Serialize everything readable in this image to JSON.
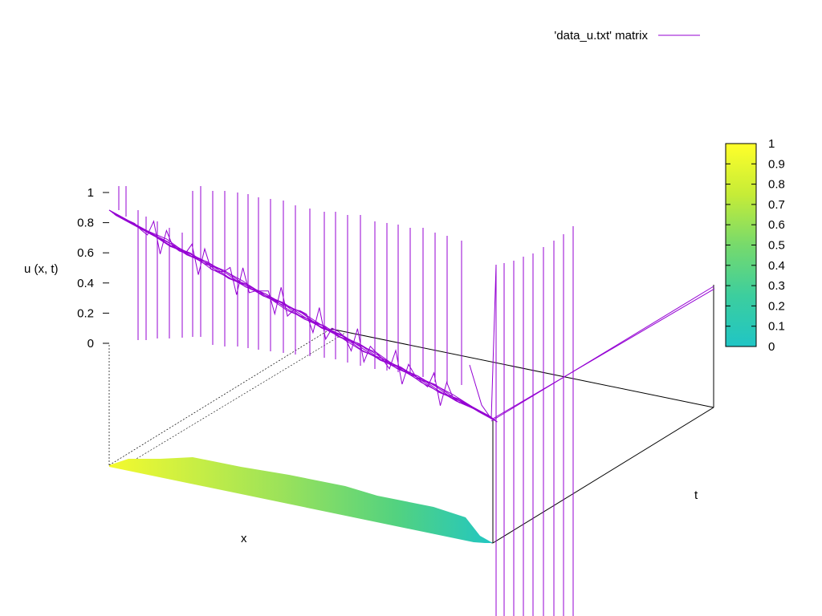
{
  "chart_data": {
    "type": "surface3d",
    "legend": {
      "label": "'data_u.txt' matrix",
      "position": "top-right"
    },
    "zlabel": "u (x, t)",
    "xlabel": "x",
    "ylabel": "t",
    "z_ticks": [
      "0",
      "0.2",
      "0.4",
      "0.6",
      "0.8",
      "1"
    ],
    "zlim": [
      0,
      1
    ],
    "colorbar": {
      "ticks": [
        "0",
        "0.1",
        "0.2",
        "0.3",
        "0.4",
        "0.5",
        "0.6",
        "0.7",
        "0.8",
        "0.9",
        "1"
      ],
      "range": [
        0,
        1
      ],
      "palette": [
        "#20c5c5",
        "#3cce9e",
        "#77da6c",
        "#c6ec37",
        "#ffff2a"
      ]
    },
    "series": [
      {
        "name": "'data_u.txt' matrix",
        "color": "#9400d3",
        "x": [
          0,
          0.05,
          0.1,
          0.15,
          0.2,
          0.25,
          0.3,
          0.35,
          0.4,
          0.45,
          0.5,
          0.55,
          0.6,
          0.65,
          0.7,
          0.75,
          0.8,
          0.85,
          0.9,
          0.95,
          1.0
        ],
        "u_profile": [
          0.9,
          0.88,
          0.85,
          0.82,
          0.78,
          0.73,
          0.67,
          0.6,
          0.53,
          0.45,
          0.37,
          0.3,
          0.23,
          0.17,
          0.12,
          0.08,
          0.05,
          0.03,
          0.02,
          0.01,
          0.0
        ]
      }
    ]
  }
}
